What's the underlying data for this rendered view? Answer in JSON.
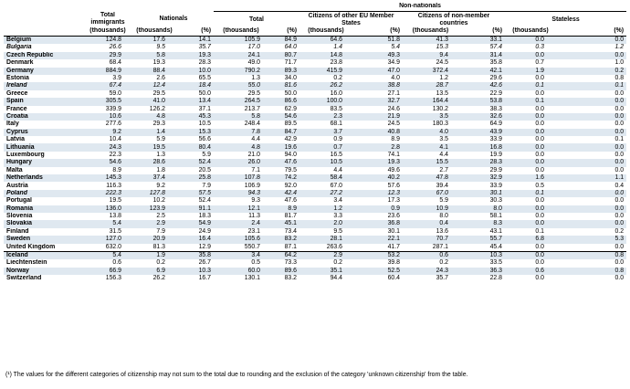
{
  "headers": {
    "total_immigrants": "Total immigrants",
    "nationals": "Nationals",
    "non_nationals": "Non-nationals",
    "total": "Total",
    "eu_citizens": "Citizens of other EU Member States",
    "non_member": "Citizens of non-member countries",
    "stateless": "Stateless",
    "unit_thousands": "(thousands)",
    "unit_pct": "(%)"
  },
  "rows": [
    {
      "country": "Belgium",
      "ti": "124.8",
      "nat_t": "17.6",
      "nat_p": "14.1",
      "nn_t": "105.9",
      "nn_p": "84.9",
      "eu_t": "64.6",
      "eu_p": "51.8",
      "nm_t": "41.3",
      "nm_p": "33.1",
      "st_t": "0.0",
      "st_p": "0.0",
      "italic": false,
      "sep": false
    },
    {
      "country": "Bulgaria",
      "ti": "26.6",
      "nat_t": "9.5",
      "nat_p": "35.7",
      "nn_t": "17.0",
      "nn_p": "64.0",
      "eu_t": "1.4",
      "eu_p": "5.4",
      "nm_t": "15.3",
      "nm_p": "57.4",
      "st_t": "0.3",
      "st_p": "1.2",
      "italic": true,
      "sep": false
    },
    {
      "country": "Czech Republic",
      "ti": "29.9",
      "nat_t": "5.8",
      "nat_p": "19.3",
      "nn_t": "24.1",
      "nn_p": "80.7",
      "eu_t": "14.8",
      "eu_p": "49.3",
      "nm_t": "9.4",
      "nm_p": "31.4",
      "st_t": "0.0",
      "st_p": "0.0",
      "italic": false,
      "sep": false
    },
    {
      "country": "Denmark",
      "ti": "68.4",
      "nat_t": "19.3",
      "nat_p": "28.3",
      "nn_t": "49.0",
      "nn_p": "71.7",
      "eu_t": "23.8",
      "eu_p": "34.9",
      "nm_t": "24.5",
      "nm_p": "35.8",
      "st_t": "0.7",
      "st_p": "1.0",
      "italic": false,
      "sep": false
    },
    {
      "country": "Germany",
      "ti": "884.9",
      "nat_t": "88.4",
      "nat_p": "10.0",
      "nn_t": "790.2",
      "nn_p": "89.3",
      "eu_t": "415.9",
      "eu_p": "47.0",
      "nm_t": "372.4",
      "nm_p": "42.1",
      "st_t": "1.9",
      "st_p": "0.2",
      "italic": false,
      "sep": false
    },
    {
      "country": "Estonia",
      "ti": "3.9",
      "nat_t": "2.6",
      "nat_p": "65.5",
      "nn_t": "1.3",
      "nn_p": "34.0",
      "eu_t": "0.2",
      "eu_p": "4.0",
      "nm_t": "1.2",
      "nm_p": "29.6",
      "st_t": "0.0",
      "st_p": "0.8",
      "italic": false,
      "sep": false
    },
    {
      "country": "Ireland",
      "ti": "67.4",
      "nat_t": "12.4",
      "nat_p": "18.4",
      "nn_t": "55.0",
      "nn_p": "81.6",
      "eu_t": "26.2",
      "eu_p": "38.8",
      "nm_t": "28.7",
      "nm_p": "42.6",
      "st_t": "0.1",
      "st_p": "0.1",
      "italic": true,
      "sep": false
    },
    {
      "country": "Greece",
      "ti": "59.0",
      "nat_t": "29.5",
      "nat_p": "50.0",
      "nn_t": "29.5",
      "nn_p": "50.0",
      "eu_t": "16.0",
      "eu_p": "27.1",
      "nm_t": "13.5",
      "nm_p": "22.9",
      "st_t": "0.0",
      "st_p": "0.0",
      "italic": false,
      "sep": false
    },
    {
      "country": "Spain",
      "ti": "305.5",
      "nat_t": "41.0",
      "nat_p": "13.4",
      "nn_t": "264.5",
      "nn_p": "86.6",
      "eu_t": "100.0",
      "eu_p": "32.7",
      "nm_t": "164.4",
      "nm_p": "53.8",
      "st_t": "0.1",
      "st_p": "0.0",
      "italic": false,
      "sep": false
    },
    {
      "country": "France",
      "ti": "339.9",
      "nat_t": "126.2",
      "nat_p": "37.1",
      "nn_t": "213.7",
      "nn_p": "62.9",
      "eu_t": "83.5",
      "eu_p": "24.6",
      "nm_t": "130.2",
      "nm_p": "38.3",
      "st_t": "0.0",
      "st_p": "0.0",
      "italic": false,
      "sep": false
    },
    {
      "country": "Croatia",
      "ti": "10.6",
      "nat_t": "4.8",
      "nat_p": "45.3",
      "nn_t": "5.8",
      "nn_p": "54.6",
      "eu_t": "2.3",
      "eu_p": "21.9",
      "nm_t": "3.5",
      "nm_p": "32.6",
      "st_t": "0.0",
      "st_p": "0.0",
      "italic": false,
      "sep": false
    },
    {
      "country": "Italy",
      "ti": "277.6",
      "nat_t": "29.3",
      "nat_p": "10.5",
      "nn_t": "248.4",
      "nn_p": "89.5",
      "eu_t": "68.1",
      "eu_p": "24.5",
      "nm_t": "180.3",
      "nm_p": "64.9",
      "st_t": "0.0",
      "st_p": "0.0",
      "italic": false,
      "sep": false
    },
    {
      "country": "Cyprus",
      "ti": "9.2",
      "nat_t": "1.4",
      "nat_p": "15.3",
      "nn_t": "7.8",
      "nn_p": "84.7",
      "eu_t": "3.7",
      "eu_p": "40.8",
      "nm_t": "4.0",
      "nm_p": "43.9",
      "st_t": "0.0",
      "st_p": "0.0",
      "italic": false,
      "sep": false
    },
    {
      "country": "Latvia",
      "ti": "10.4",
      "nat_t": "5.9",
      "nat_p": "56.6",
      "nn_t": "4.4",
      "nn_p": "42.9",
      "eu_t": "0.9",
      "eu_p": "8.9",
      "nm_t": "3.5",
      "nm_p": "33.9",
      "st_t": "0.0",
      "st_p": "0.1",
      "italic": false,
      "sep": false
    },
    {
      "country": "Lithuania",
      "ti": "24.3",
      "nat_t": "19.5",
      "nat_p": "80.4",
      "nn_t": "4.8",
      "nn_p": "19.6",
      "eu_t": "0.7",
      "eu_p": "2.8",
      "nm_t": "4.1",
      "nm_p": "16.8",
      "st_t": "0.0",
      "st_p": "0.0",
      "italic": false,
      "sep": false
    },
    {
      "country": "Luxembourg",
      "ti": "22.3",
      "nat_t": "1.3",
      "nat_p": "5.9",
      "nn_t": "21.0",
      "nn_p": "94.0",
      "eu_t": "16.5",
      "eu_p": "74.1",
      "nm_t": "4.4",
      "nm_p": "19.9",
      "st_t": "0.0",
      "st_p": "0.0",
      "italic": false,
      "sep": false
    },
    {
      "country": "Hungary",
      "ti": "54.6",
      "nat_t": "28.6",
      "nat_p": "52.4",
      "nn_t": "26.0",
      "nn_p": "47.6",
      "eu_t": "10.5",
      "eu_p": "19.3",
      "nm_t": "15.5",
      "nm_p": "28.3",
      "st_t": "0.0",
      "st_p": "0.0",
      "italic": false,
      "sep": false
    },
    {
      "country": "Malta",
      "ti": "8.9",
      "nat_t": "1.8",
      "nat_p": "20.5",
      "nn_t": "7.1",
      "nn_p": "79.5",
      "eu_t": "4.4",
      "eu_p": "49.6",
      "nm_t": "2.7",
      "nm_p": "29.9",
      "st_t": "0.0",
      "st_p": "0.0",
      "italic": false,
      "sep": false
    },
    {
      "country": "Netherlands",
      "ti": "145.3",
      "nat_t": "37.4",
      "nat_p": "25.8",
      "nn_t": "107.8",
      "nn_p": "74.2",
      "eu_t": "58.4",
      "eu_p": "40.2",
      "nm_t": "47.8",
      "nm_p": "32.9",
      "st_t": "1.6",
      "st_p": "1.1",
      "italic": false,
      "sep": false
    },
    {
      "country": "Austria",
      "ti": "116.3",
      "nat_t": "9.2",
      "nat_p": "7.9",
      "nn_t": "106.9",
      "nn_p": "92.0",
      "eu_t": "67.0",
      "eu_p": "57.6",
      "nm_t": "39.4",
      "nm_p": "33.9",
      "st_t": "0.5",
      "st_p": "0.4",
      "italic": false,
      "sep": false
    },
    {
      "country": "Poland",
      "ti": "222.3",
      "nat_t": "127.8",
      "nat_p": "57.5",
      "nn_t": "94.3",
      "nn_p": "42.4",
      "eu_t": "27.2",
      "eu_p": "12.3",
      "nm_t": "67.0",
      "nm_p": "30.1",
      "st_t": "0.1",
      "st_p": "0.0",
      "italic": true,
      "sep": false
    },
    {
      "country": "Portugal",
      "ti": "19.5",
      "nat_t": "10.2",
      "nat_p": "52.4",
      "nn_t": "9.3",
      "nn_p": "47.6",
      "eu_t": "3.4",
      "eu_p": "17.3",
      "nm_t": "5.9",
      "nm_p": "30.3",
      "st_t": "0.0",
      "st_p": "0.0",
      "italic": false,
      "sep": false
    },
    {
      "country": "Romania",
      "ti": "136.0",
      "nat_t": "123.9",
      "nat_p": "91.1",
      "nn_t": "12.1",
      "nn_p": "8.9",
      "eu_t": "1.2",
      "eu_p": "0.9",
      "nm_t": "10.9",
      "nm_p": "8.0",
      "st_t": "0.0",
      "st_p": "0.0",
      "italic": false,
      "sep": false
    },
    {
      "country": "Slovenia",
      "ti": "13.8",
      "nat_t": "2.5",
      "nat_p": "18.3",
      "nn_t": "11.3",
      "nn_p": "81.7",
      "eu_t": "3.3",
      "eu_p": "23.6",
      "nm_t": "8.0",
      "nm_p": "58.1",
      "st_t": "0.0",
      "st_p": "0.0",
      "italic": false,
      "sep": false
    },
    {
      "country": "Slovakia",
      "ti": "5.4",
      "nat_t": "2.9",
      "nat_p": "54.9",
      "nn_t": "2.4",
      "nn_p": "45.1",
      "eu_t": "2.0",
      "eu_p": "36.8",
      "nm_t": "0.4",
      "nm_p": "8.3",
      "st_t": "0.0",
      "st_p": "0.0",
      "italic": false,
      "sep": false
    },
    {
      "country": "Finland",
      "ti": "31.5",
      "nat_t": "7.9",
      "nat_p": "24.9",
      "nn_t": "23.1",
      "nn_p": "73.4",
      "eu_t": "9.5",
      "eu_p": "30.1",
      "nm_t": "13.6",
      "nm_p": "43.1",
      "st_t": "0.1",
      "st_p": "0.2",
      "italic": false,
      "sep": false
    },
    {
      "country": "Sweden",
      "ti": "127.0",
      "nat_t": "20.9",
      "nat_p": "16.4",
      "nn_t": "105.6",
      "nn_p": "83.2",
      "eu_t": "28.1",
      "eu_p": "22.1",
      "nm_t": "70.7",
      "nm_p": "55.7",
      "st_t": "6.8",
      "st_p": "5.3",
      "italic": false,
      "sep": false
    },
    {
      "country": "United Kingdom",
      "ti": "632.0",
      "nat_t": "81.3",
      "nat_p": "12.9",
      "nn_t": "550.7",
      "nn_p": "87.1",
      "eu_t": "263.6",
      "eu_p": "41.7",
      "nm_t": "287.1",
      "nm_p": "45.4",
      "st_t": "0.0",
      "st_p": "0.0",
      "italic": false,
      "sep": false
    },
    {
      "country": "Iceland",
      "ti": "5.4",
      "nat_t": "1.9",
      "nat_p": "35.8",
      "nn_t": "3.4",
      "nn_p": "64.2",
      "eu_t": "2.9",
      "eu_p": "53.2",
      "nm_t": "0.6",
      "nm_p": "10.3",
      "st_t": "0.0",
      "st_p": "0.8",
      "italic": false,
      "sep": true
    },
    {
      "country": "Liechtenstein",
      "ti": "0.6",
      "nat_t": "0.2",
      "nat_p": "26.7",
      "nn_t": "0.5",
      "nn_p": "73.3",
      "eu_t": "0.2",
      "eu_p": "39.8",
      "nm_t": "0.2",
      "nm_p": "33.5",
      "st_t": "0.0",
      "st_p": "0.0",
      "italic": false,
      "sep": false
    },
    {
      "country": "Norway",
      "ti": "66.9",
      "nat_t": "6.9",
      "nat_p": "10.3",
      "nn_t": "60.0",
      "nn_p": "89.6",
      "eu_t": "35.1",
      "eu_p": "52.5",
      "nm_t": "24.3",
      "nm_p": "36.3",
      "st_t": "0.6",
      "st_p": "0.8",
      "italic": false,
      "sep": false
    },
    {
      "country": "Switzerland",
      "ti": "156.3",
      "nat_t": "26.2",
      "nat_p": "16.7",
      "nn_t": "130.1",
      "nn_p": "83.2",
      "eu_t": "94.4",
      "eu_p": "60.4",
      "nm_t": "35.7",
      "nm_p": "22.8",
      "st_t": "0.0",
      "st_p": "0.0",
      "italic": false,
      "sep": false
    }
  ],
  "footnote": "(¹) The values for the different categories of citizenship may not sum to the total due to rounding and the exclusion of the category 'unknown citizenship' from the table."
}
